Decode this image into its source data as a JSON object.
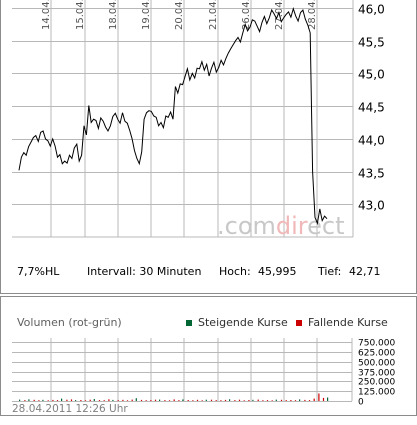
{
  "colors": {
    "line": "#000000",
    "grid": "#b8b8b8",
    "border": "#8c8c8c",
    "rising": "#006633",
    "falling": "#cc0000",
    "watermark": "#c8c8c8",
    "watermark_accent": "#f0b8b8"
  },
  "watermark": {
    "part1": ".com",
    "part2": "dir",
    "part3": "ect"
  },
  "stats": {
    "range": "7,7%HL",
    "interval": "Intervall: 30 Minuten",
    "high_label": "Hoch:",
    "high_value": "45,995",
    "low_label": "Tief:",
    "low_value": "42,71"
  },
  "volume": {
    "title": "Volumen (rot-grün)",
    "legend_rising": "Steigende Kurse",
    "legend_falling": "Fallende Kurse",
    "timestamp": "28.04.2011 12:26 Uhr"
  },
  "chart_data": [
    {
      "type": "line",
      "x_ticks": [
        "14.04.",
        "15.04.",
        "18.04.",
        "19.04.",
        "20.04.",
        "21.04.",
        "26.04.",
        "27.04.",
        "28.04."
      ],
      "y_ticks": [
        "43,0",
        "43,5",
        "44,0",
        "44,5",
        "45,0",
        "45,5",
        "46,0"
      ],
      "ylim": [
        42.5,
        46.0
      ],
      "grid": true,
      "series": [
        {
          "values": [
            43.52,
            43.72,
            43.79,
            43.75,
            43.88,
            43.95,
            44.02,
            44.05,
            43.96,
            44.1,
            44.12,
            44.0,
            43.97,
            43.89,
            44.0,
            43.89,
            43.72,
            43.76,
            43.62,
            43.66,
            43.63,
            43.75,
            43.7,
            43.86,
            43.92,
            43.66,
            43.75,
            44.2,
            44.06,
            44.51,
            44.25,
            44.3,
            44.28,
            44.16,
            44.32,
            44.27,
            44.18,
            44.12,
            44.2,
            44.34,
            44.39,
            44.3,
            44.24,
            44.4,
            44.27,
            44.24,
            44.13,
            44.0,
            43.82,
            43.7,
            43.62,
            43.8,
            44.3,
            44.4,
            44.43,
            44.42,
            44.35,
            44.33,
            44.2,
            44.25,
            44.17,
            44.35,
            44.33,
            44.41,
            44.3,
            44.8,
            44.7,
            44.84,
            44.83,
            44.95,
            45.07,
            44.9,
            45.0,
            44.93,
            45.08,
            45.07,
            45.18,
            45.05,
            45.14,
            44.96,
            45.08,
            45.17,
            45.02,
            45.09,
            45.2,
            45.13,
            45.23,
            45.31,
            45.38,
            45.44,
            45.5,
            45.55,
            45.48,
            45.62,
            45.75,
            45.65,
            45.71,
            45.82,
            45.8,
            45.72,
            45.64,
            45.78,
            45.87,
            45.76,
            45.85,
            45.97,
            45.91,
            45.84,
            45.93,
            45.79,
            45.85,
            45.9,
            45.94,
            45.86,
            45.99,
            45.88,
            45.8,
            45.93,
            45.97,
            45.83,
            45.74,
            45.62,
            43.5,
            42.8,
            42.71,
            42.93,
            42.75,
            42.82,
            42.78
          ]
        }
      ]
    },
    {
      "type": "bar",
      "title": "Volumen (rot-grün)",
      "y_ticks": [
        "0",
        "125.000",
        "250.000",
        "375.000",
        "500.000",
        "625.000",
        "750.000"
      ],
      "ylim": [
        0,
        750000
      ],
      "grid": true,
      "series": [
        {
          "name": "Steigende Kurse",
          "values": [
            18000,
            0,
            22000,
            0,
            0,
            15000,
            0,
            0,
            0,
            30000,
            0,
            0,
            12000,
            0,
            0,
            0,
            25000,
            0,
            0,
            0,
            14000,
            0,
            0,
            0,
            0,
            35000,
            0,
            0,
            0,
            0,
            18000,
            0,
            0,
            0,
            0,
            20000,
            0,
            0,
            0,
            0,
            16000,
            0,
            0,
            0,
            0,
            22000,
            0,
            0,
            0,
            0,
            15000,
            0,
            0,
            0,
            0,
            18000,
            0,
            0,
            0,
            0,
            20000,
            0,
            0,
            0,
            0,
            0,
            45000
          ]
        },
        {
          "name": "Fallende Kurse",
          "values": [
            0,
            12000,
            0,
            15000,
            10000,
            0,
            9000,
            14000,
            11000,
            0,
            16000,
            20000,
            0,
            13000,
            9000,
            17000,
            0,
            12000,
            10000,
            22000,
            0,
            11000,
            15000,
            9000,
            18000,
            0,
            14000,
            10000,
            13000,
            16000,
            0,
            12000,
            9000,
            20000,
            11000,
            0,
            13000,
            10000,
            15000,
            9000,
            0,
            17000,
            12000,
            10000,
            14000,
            0,
            11000,
            16000,
            9000,
            13000,
            0,
            18000,
            10000,
            12000,
            9000,
            0,
            15000,
            11000,
            13000,
            10000,
            0,
            14000,
            12000,
            30000,
            95000,
            40000,
            0
          ]
        }
      ]
    }
  ]
}
